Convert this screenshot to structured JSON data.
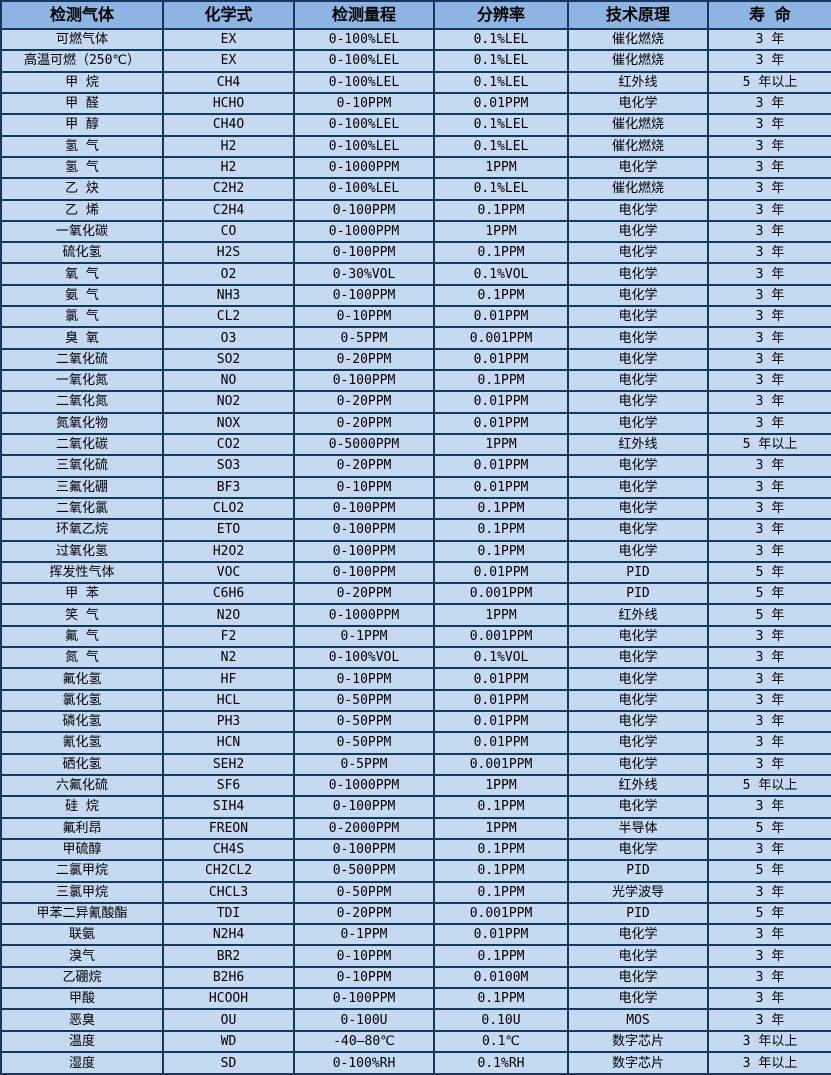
{
  "colors": {
    "header_bg": "#8DB4E2",
    "row_bg": "#C5D9F1",
    "border": "#17375E",
    "text": "#000000"
  },
  "table": {
    "column_names": [
      "gas-name",
      "formula",
      "range",
      "resolution",
      "principle",
      "lifespan"
    ],
    "headers": [
      "检测气体",
      "化学式",
      "检测量程",
      "分辨率",
      "技术原理",
      "寿 命"
    ],
    "rows": [
      [
        "可燃气体",
        "EX",
        "0-100%LEL",
        "0.1%LEL",
        "催化燃烧",
        "3 年"
      ],
      [
        "高温可燃（250℃）",
        "EX",
        "0-100%LEL",
        "0.1%LEL",
        "催化燃烧",
        "3 年"
      ],
      [
        "甲 烷",
        "CH4",
        "0-100%LEL",
        "0.1%LEL",
        "红外线",
        "5 年以上"
      ],
      [
        "甲 醛",
        "HCHO",
        "0-10PPM",
        "0.01PPM",
        "电化学",
        "3 年"
      ],
      [
        "甲 醇",
        "CH4O",
        "0-100%LEL",
        "0.1%LEL",
        "催化燃烧",
        "3 年"
      ],
      [
        "氢 气",
        "H2",
        "0-100%LEL",
        "0.1%LEL",
        "催化燃烧",
        "3 年"
      ],
      [
        "氢 气",
        "H2",
        "0-1000PPM",
        "1PPM",
        "电化学",
        "3 年"
      ],
      [
        "乙 炔",
        "C2H2",
        "0-100%LEL",
        "0.1%LEL",
        "催化燃烧",
        "3 年"
      ],
      [
        "乙 烯",
        "C2H4",
        "0-100PPM",
        "0.1PPM",
        "电化学",
        "3 年"
      ],
      [
        "一氧化碳",
        "CO",
        "0-1000PPM",
        "1PPM",
        "电化学",
        "3 年"
      ],
      [
        "硫化氢",
        "H2S",
        "0-100PPM",
        "0.1PPM",
        "电化学",
        "3 年"
      ],
      [
        "氧 气",
        "O2",
        "0-30%VOL",
        "0.1%VOL",
        "电化学",
        "3 年"
      ],
      [
        "氨 气",
        "NH3",
        "0-100PPM",
        "0.1PPM",
        "电化学",
        "3 年"
      ],
      [
        "氯 气",
        "CL2",
        "0-10PPM",
        "0.01PPM",
        "电化学",
        "3 年"
      ],
      [
        "臭 氧",
        "O3",
        "0-5PPM",
        "0.001PPM",
        "电化学",
        "3 年"
      ],
      [
        "二氧化硫",
        "SO2",
        "0-20PPM",
        "0.01PPM",
        "电化学",
        "3 年"
      ],
      [
        "一氧化氮",
        "NO",
        "0-100PPM",
        "0.1PPM",
        "电化学",
        "3 年"
      ],
      [
        "二氧化氮",
        "NO2",
        "0-20PPM",
        "0.01PPM",
        "电化学",
        "3 年"
      ],
      [
        "氮氧化物",
        "NOX",
        "0-20PPM",
        "0.01PPM",
        "电化学",
        "3 年"
      ],
      [
        "二氧化碳",
        "CO2",
        "0-5000PPM",
        "1PPM",
        "红外线",
        "5 年以上"
      ],
      [
        "三氧化硫",
        "SO3",
        "0-20PPM",
        "0.01PPM",
        "电化学",
        "3 年"
      ],
      [
        "三氟化硼",
        "BF3",
        "0-10PPM",
        "0.01PPM",
        "电化学",
        "3 年"
      ],
      [
        "二氧化氯",
        "CLO2",
        "0-100PPM",
        "0.1PPM",
        "电化学",
        "3 年"
      ],
      [
        "环氧乙烷",
        "ETO",
        "0-100PPM",
        "0.1PPM",
        "电化学",
        "3 年"
      ],
      [
        "过氧化氢",
        "H2O2",
        "0-100PPM",
        "0.1PPM",
        "电化学",
        "3 年"
      ],
      [
        "挥发性气体",
        "VOC",
        "0-100PPM",
        "0.01PPM",
        "PID",
        "5 年"
      ],
      [
        "甲 苯",
        "C6H6",
        "0-20PPM",
        "0.001PPM",
        "PID",
        "5 年"
      ],
      [
        "笑 气",
        "N2O",
        "0-1000PPM",
        "1PPM",
        "红外线",
        "5 年"
      ],
      [
        "氟 气",
        "F2",
        "0-1PPM",
        "0.001PPM",
        "电化学",
        "3 年"
      ],
      [
        "氮 气",
        "N2",
        "0-100%VOL",
        "0.1%VOL",
        "电化学",
        "3 年"
      ],
      [
        "氟化氢",
        "HF",
        "0-10PPM",
        "0.01PPM",
        "电化学",
        "3 年"
      ],
      [
        "氯化氢",
        "HCL",
        "0-50PPM",
        "0.01PPM",
        "电化学",
        "3 年"
      ],
      [
        "磷化氢",
        "PH3",
        "0-50PPM",
        "0.01PPM",
        "电化学",
        "3 年"
      ],
      [
        "氰化氢",
        "HCN",
        "0-50PPM",
        "0.01PPM",
        "电化学",
        "3 年"
      ],
      [
        "硒化氢",
        "SEH2",
        "0-5PPM",
        "0.001PPM",
        "电化学",
        "3 年"
      ],
      [
        "六氟化硫",
        "SF6",
        "0-1000PPM",
        "1PPM",
        "红外线",
        "5 年以上"
      ],
      [
        "硅 烷",
        "SIH4",
        "0-100PPM",
        "0.1PPM",
        "电化学",
        "3 年"
      ],
      [
        "氟利昂",
        "FREON",
        "0-2000PPM",
        "1PPM",
        "半导体",
        "5 年"
      ],
      [
        "甲硫醇",
        "CH4S",
        "0-100PPM",
        "0.1PPM",
        "电化学",
        "3 年"
      ],
      [
        "二氯甲烷",
        "CH2CL2",
        "0-500PPM",
        "0.1PPM",
        "PID",
        "5 年"
      ],
      [
        "三氯甲烷",
        "CHCL3",
        "0-50PPM",
        "0.1PPM",
        "光学波导",
        "3 年"
      ],
      [
        "甲苯二异氰酸酯",
        "TDI",
        "0-20PPM",
        "0.001PPM",
        "PID",
        "5 年"
      ],
      [
        "联氨",
        "N2H4",
        "0-1PPM",
        "0.01PPM",
        "电化学",
        "3 年"
      ],
      [
        "溴气",
        "BR2",
        "0-10PPM",
        "0.1PPM",
        "电化学",
        "3 年"
      ],
      [
        "乙硼烷",
        "B2H6",
        "0-10PPM",
        "0.0100M",
        "电化学",
        "3 年"
      ],
      [
        "甲酸",
        "HCOOH",
        "0-100PPM",
        "0.1PPM",
        "电化学",
        "3 年"
      ],
      [
        "恶臭",
        "OU",
        "0-100U",
        "0.10U",
        "MOS",
        "3 年"
      ],
      [
        "温度",
        "WD",
        "-40—80℃",
        "0.1℃",
        "数字芯片",
        "3 年以上"
      ],
      [
        "湿度",
        "SD",
        "0-100%RH",
        "0.1%RH",
        "数字芯片",
        "3 年以上"
      ]
    ]
  }
}
